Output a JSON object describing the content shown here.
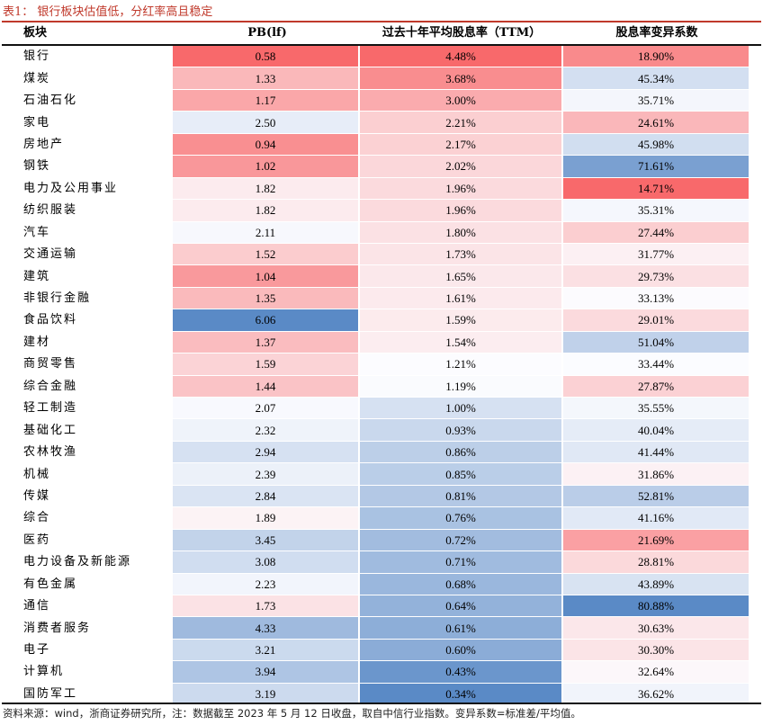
{
  "title": "表1：  银行板块估值低，分红率高且稳定",
  "headers": [
    "板块",
    "PB(lf)",
    "过去十年平均股息率（TTM）",
    "股息率变异系数"
  ],
  "chart_data": {
    "type": "table",
    "columns": [
      "板块",
      "PB(lf)",
      "过去十年平均股息率（TTM）",
      "股息率变异系数"
    ],
    "rows": [
      [
        "银行",
        "0.58",
        "4.48%",
        "18.90%"
      ],
      [
        "煤炭",
        "1.33",
        "3.68%",
        "45.34%"
      ],
      [
        "石油石化",
        "1.17",
        "3.00%",
        "35.71%"
      ],
      [
        "家电",
        "2.50",
        "2.21%",
        "24.61%"
      ],
      [
        "房地产",
        "0.94",
        "2.17%",
        "45.98%"
      ],
      [
        "钢铁",
        "1.02",
        "2.02%",
        "71.61%"
      ],
      [
        "电力及公用事业",
        "1.82",
        "1.96%",
        "14.71%"
      ],
      [
        "纺织服装",
        "1.82",
        "1.96%",
        "35.31%"
      ],
      [
        "汽车",
        "2.11",
        "1.80%",
        "27.44%"
      ],
      [
        "交通运输",
        "1.52",
        "1.73%",
        "31.77%"
      ],
      [
        "建筑",
        "1.04",
        "1.65%",
        "29.73%"
      ],
      [
        "非银行金融",
        "1.35",
        "1.61%",
        "33.13%"
      ],
      [
        "食品饮料",
        "6.06",
        "1.59%",
        "29.01%"
      ],
      [
        "建材",
        "1.37",
        "1.54%",
        "51.04%"
      ],
      [
        "商贸零售",
        "1.59",
        "1.21%",
        "33.44%"
      ],
      [
        "综合金融",
        "1.44",
        "1.19%",
        "27.87%"
      ],
      [
        "轻工制造",
        "2.07",
        "1.00%",
        "35.55%"
      ],
      [
        "基础化工",
        "2.32",
        "0.93%",
        "40.04%"
      ],
      [
        "农林牧渔",
        "2.94",
        "0.86%",
        "41.44%"
      ],
      [
        "机械",
        "2.39",
        "0.85%",
        "31.86%"
      ],
      [
        "传媒",
        "2.84",
        "0.81%",
        "52.81%"
      ],
      [
        "综合",
        "1.89",
        "0.76%",
        "41.16%"
      ],
      [
        "医药",
        "3.45",
        "0.72%",
        "21.69%"
      ],
      [
        "电力设备及新能源",
        "3.08",
        "0.71%",
        "28.81%"
      ],
      [
        "有色金属",
        "2.23",
        "0.68%",
        "43.89%"
      ],
      [
        "通信",
        "1.73",
        "0.64%",
        "80.88%"
      ],
      [
        "消费者服务",
        "4.33",
        "0.61%",
        "30.63%"
      ],
      [
        "电子",
        "3.21",
        "0.60%",
        "30.30%"
      ],
      [
        "计算机",
        "3.94",
        "0.43%",
        "32.64%"
      ],
      [
        "国防军工",
        "3.19",
        "0.34%",
        "36.62%"
      ]
    ],
    "color_scale": {
      "low": "#f8696b",
      "mid": "#fcfcff",
      "high": "#5a8ac6"
    }
  },
  "footnote": "资料来源：wind，浙商证券研究所，注：数据截至 2023 年 5 月 12 日收盘，取自中信行业指数。变异系数=标准差/平均值。"
}
